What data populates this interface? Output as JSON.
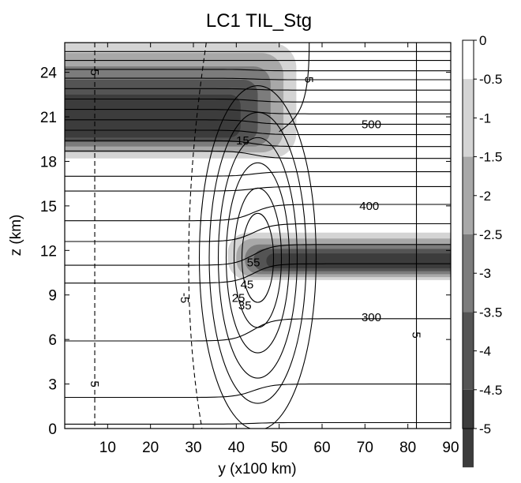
{
  "chart_data": {
    "type": "contour",
    "title": "LC1 TIL_Stg",
    "xlabel": "y (x100 km)",
    "ylabel": "z (km)",
    "xlim": [
      0,
      90
    ],
    "ylim": [
      0,
      26
    ],
    "xticks": [
      10,
      20,
      30,
      40,
      50,
      60,
      70,
      80,
      90
    ],
    "xtick_labels": [
      "10",
      "20",
      "30",
      "40",
      "50",
      "60",
      "70",
      "80",
      "90"
    ],
    "yticks": [
      0,
      3,
      6,
      9,
      12,
      15,
      18,
      21,
      24
    ],
    "ytick_labels": [
      "0",
      "3",
      "6",
      "9",
      "12",
      "15",
      "18",
      "21",
      "24"
    ],
    "colorbar": {
      "levels": [
        0,
        -0.5,
        -1,
        -1.5,
        -2,
        -2.5,
        -3,
        -3.5,
        -4,
        -4.5,
        -5
      ],
      "labels": [
        "0",
        "-0.5",
        "-1",
        "-1.5",
        "-2",
        "-2.5",
        "-3",
        "-3.5",
        "-4",
        "-4.5",
        "-5"
      ],
      "colors": [
        "#ffffff",
        "#d4d4d4",
        "#a8a8a8",
        "#7c7c7c",
        "#545454",
        "#3c3c3c"
      ]
    },
    "filled_regions": [
      {
        "name": "upper",
        "x_range": [
          0,
          54
        ],
        "z_range": [
          18.2,
          26
        ]
      },
      {
        "name": "lower",
        "x_range": [
          38,
          90
        ],
        "z_range": [
          10,
          13.2
        ]
      }
    ],
    "contour_labels": [
      {
        "text": "500",
        "x": 71.5,
        "z": 20.5
      },
      {
        "text": "400",
        "x": 71,
        "z": 15
      },
      {
        "text": "300",
        "x": 71.5,
        "z": 7.5
      },
      {
        "text": "15",
        "x": 41.5,
        "z": 19.4
      },
      {
        "text": "5",
        "x": 57,
        "z": 23.5
      },
      {
        "text": "5",
        "x": 7,
        "z": 24
      },
      {
        "text": "5",
        "x": 7,
        "z": 3
      },
      {
        "text": "5",
        "x": 82,
        "z": 6.3
      },
      {
        "text": "-5",
        "x": 28,
        "z": 8.8
      },
      {
        "text": "55",
        "x": 44,
        "z": 11.2
      },
      {
        "text": "45",
        "x": 42.5,
        "z": 9.7
      },
      {
        "text": "35",
        "x": 42,
        "z": 8.3
      },
      {
        "text": "25",
        "x": 40.5,
        "z": 8.8
      }
    ]
  }
}
